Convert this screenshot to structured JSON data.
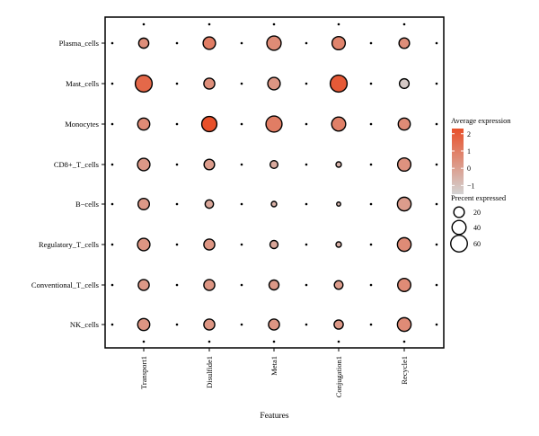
{
  "chart_data": {
    "type": "dot",
    "title": "",
    "xlabel": "Features",
    "ylabel": "",
    "x_categories": [
      "Transport1",
      "Disulfide1",
      "Meta1",
      "Conjugation1",
      "Recycle1"
    ],
    "y_categories": [
      "Plasma_cells",
      "Mast_cells",
      "Monocytes",
      "CD8+_T_cells",
      "B−cells",
      "Regulatory_T_cells",
      "Conventional_T_cells",
      "NK_cells"
    ],
    "color_legend": {
      "title": "Average expression",
      "ticks": [
        2,
        1,
        0,
        -1
      ],
      "tick_labels": [
        "2",
        "1",
        "0",
        "−1"
      ],
      "range": [
        -1.5,
        2.3
      ],
      "low_color": "#d3d3d3",
      "high_color": "#e8502a"
    },
    "size_legend": {
      "title": "Precent expressed",
      "values": [
        20,
        40,
        60
      ],
      "labels": [
        "20",
        "40",
        "60"
      ]
    },
    "points": [
      {
        "cell": "Plasma_cells",
        "feature": "Transport1",
        "pct": 18,
        "avg": 0.5
      },
      {
        "cell": "Plasma_cells",
        "feature": "Disulfide1",
        "pct": 30,
        "avg": 1.0
      },
      {
        "cell": "Plasma_cells",
        "feature": "Meta1",
        "pct": 42,
        "avg": 0.6
      },
      {
        "cell": "Plasma_cells",
        "feature": "Conjugation1",
        "pct": 35,
        "avg": 0.8
      },
      {
        "cell": "Plasma_cells",
        "feature": "Recycle1",
        "pct": 20,
        "avg": 0.5
      },
      {
        "cell": "Mast_cells",
        "feature": "Transport1",
        "pct": 62,
        "avg": 1.6
      },
      {
        "cell": "Mast_cells",
        "feature": "Disulfide1",
        "pct": 22,
        "avg": 0.5
      },
      {
        "cell": "Mast_cells",
        "feature": "Meta1",
        "pct": 30,
        "avg": 0.3
      },
      {
        "cell": "Mast_cells",
        "feature": "Conjugation1",
        "pct": 62,
        "avg": 2.0
      },
      {
        "cell": "Mast_cells",
        "feature": "Recycle1",
        "pct": 16,
        "avg": -1.2
      },
      {
        "cell": "Monocytes",
        "feature": "Transport1",
        "pct": 28,
        "avg": 0.6
      },
      {
        "cell": "Monocytes",
        "feature": "Disulfide1",
        "pct": 48,
        "avg": 2.3
      },
      {
        "cell": "Monocytes",
        "feature": "Meta1",
        "pct": 55,
        "avg": 1.0
      },
      {
        "cell": "Monocytes",
        "feature": "Conjugation1",
        "pct": 40,
        "avg": 0.9
      },
      {
        "cell": "Monocytes",
        "feature": "Recycle1",
        "pct": 28,
        "avg": 0.6
      },
      {
        "cell": "CD8+_T_cells",
        "feature": "Transport1",
        "pct": 30,
        "avg": 0.2
      },
      {
        "cell": "CD8+_T_cells",
        "feature": "Disulfide1",
        "pct": 20,
        "avg": 0.1
      },
      {
        "cell": "CD8+_T_cells",
        "feature": "Meta1",
        "pct": 9,
        "avg": -0.3
      },
      {
        "cell": "CD8+_T_cells",
        "feature": "Conjugation1",
        "pct": 3,
        "avg": -0.6
      },
      {
        "cell": "CD8+_T_cells",
        "feature": "Recycle1",
        "pct": 35,
        "avg": 0.4
      },
      {
        "cell": "B−cells",
        "feature": "Transport1",
        "pct": 24,
        "avg": 0.2
      },
      {
        "cell": "B−cells",
        "feature": "Disulfide1",
        "pct": 11,
        "avg": -0.2
      },
      {
        "cell": "B−cells",
        "feature": "Meta1",
        "pct": 3,
        "avg": -0.5
      },
      {
        "cell": "B−cells",
        "feature": "Conjugation1",
        "pct": 1,
        "avg": -0.7
      },
      {
        "cell": "B−cells",
        "feature": "Recycle1",
        "pct": 38,
        "avg": 0.1
      },
      {
        "cell": "Regulatory_T_cells",
        "feature": "Transport1",
        "pct": 30,
        "avg": 0.3
      },
      {
        "cell": "Regulatory_T_cells",
        "feature": "Disulfide1",
        "pct": 22,
        "avg": 0.3
      },
      {
        "cell": "Regulatory_T_cells",
        "feature": "Meta1",
        "pct": 10,
        "avg": -0.2
      },
      {
        "cell": "Regulatory_T_cells",
        "feature": "Conjugation1",
        "pct": 3,
        "avg": -0.5
      },
      {
        "cell": "Regulatory_T_cells",
        "feature": "Recycle1",
        "pct": 38,
        "avg": 0.6
      },
      {
        "cell": "Conventional_T_cells",
        "feature": "Transport1",
        "pct": 22,
        "avg": 0.2
      },
      {
        "cell": "Conventional_T_cells",
        "feature": "Disulfide1",
        "pct": 22,
        "avg": 0.3
      },
      {
        "cell": "Conventional_T_cells",
        "feature": "Meta1",
        "pct": 17,
        "avg": 0.2
      },
      {
        "cell": "Conventional_T_cells",
        "feature": "Conjugation1",
        "pct": 12,
        "avg": 0.1
      },
      {
        "cell": "Conventional_T_cells",
        "feature": "Recycle1",
        "pct": 34,
        "avg": 0.6
      },
      {
        "cell": "NK_cells",
        "feature": "Transport1",
        "pct": 28,
        "avg": 0.3
      },
      {
        "cell": "NK_cells",
        "feature": "Disulfide1",
        "pct": 22,
        "avg": 0.3
      },
      {
        "cell": "NK_cells",
        "feature": "Meta1",
        "pct": 22,
        "avg": 0.3
      },
      {
        "cell": "NK_cells",
        "feature": "Conjugation1",
        "pct": 14,
        "avg": 0.2
      },
      {
        "cell": "NK_cells",
        "feature": "Recycle1",
        "pct": 38,
        "avg": 0.6
      }
    ]
  }
}
